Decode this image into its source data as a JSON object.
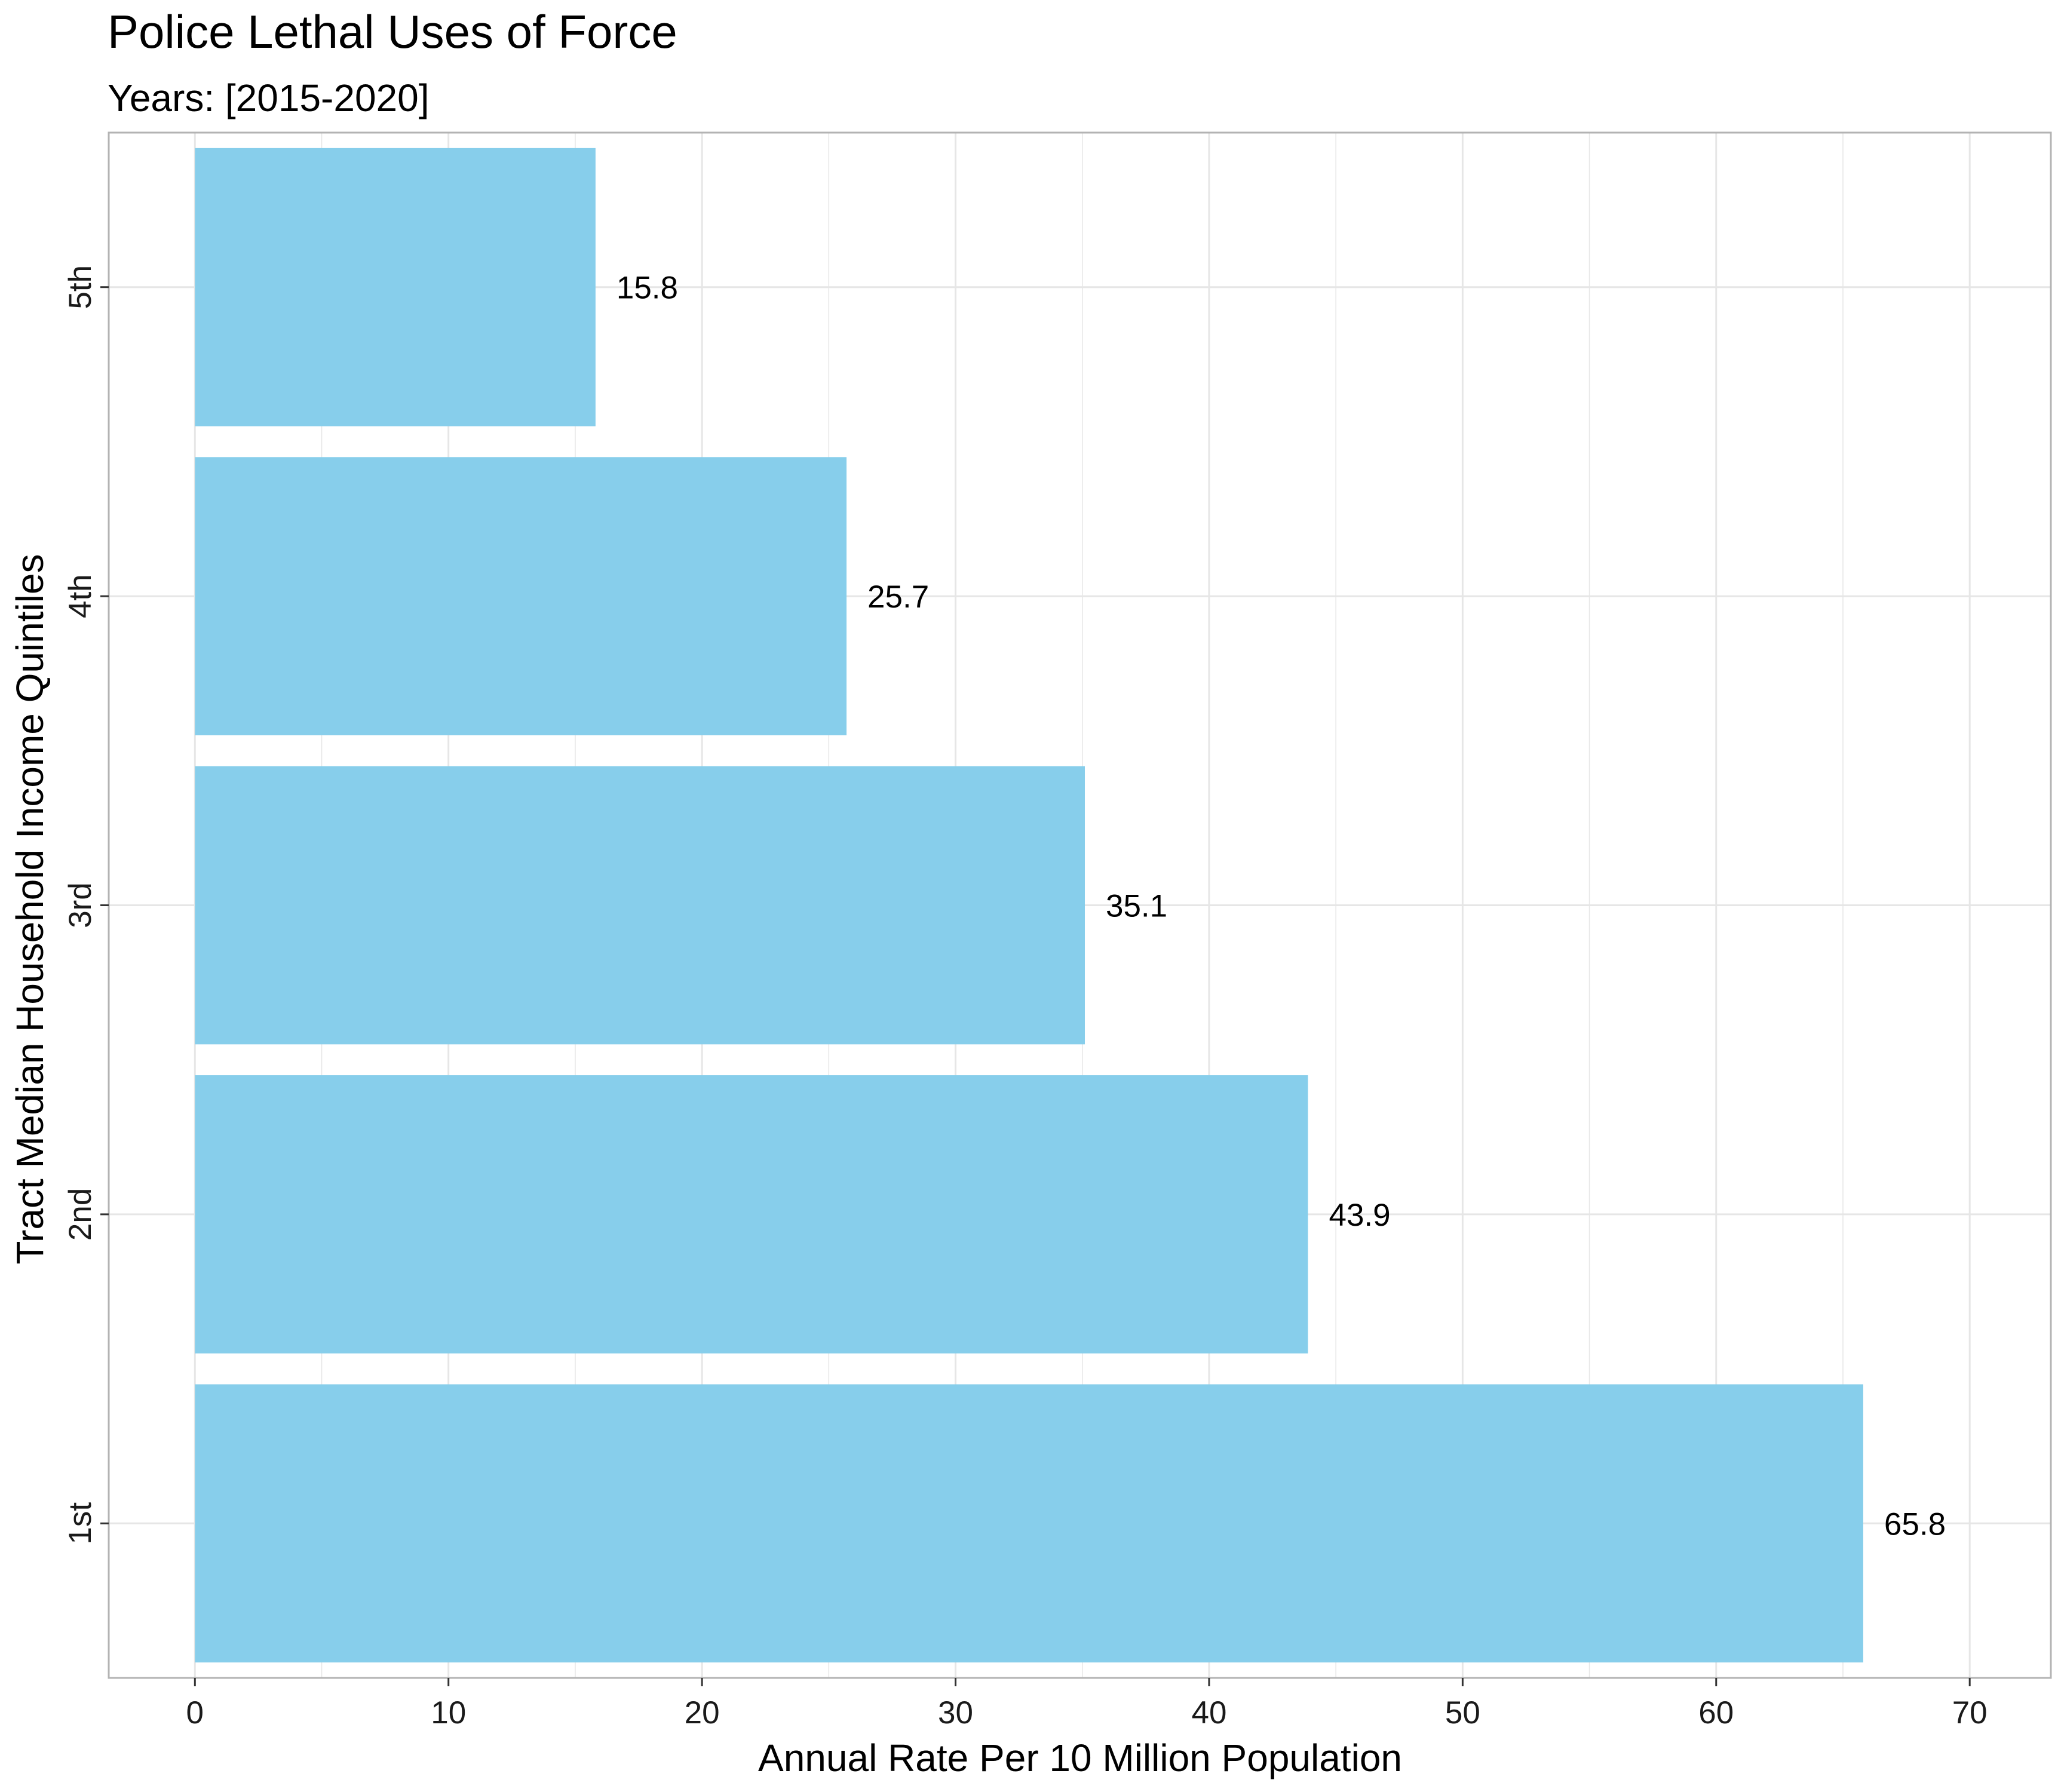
{
  "chart_data": {
    "type": "bar",
    "orientation": "horizontal",
    "title": "Police Lethal Uses of Force",
    "subtitle": "Years: [2015-2020]",
    "xlabel": "Annual Rate Per 10 Million Population",
    "ylabel": "Tract Median Household Income Quintiles",
    "categories": [
      "1st",
      "2nd",
      "3rd",
      "4th",
      "5th"
    ],
    "values": [
      65.8,
      43.9,
      35.1,
      25.7,
      15.8
    ],
    "data_labels": [
      "65.8",
      "43.9",
      "35.1",
      "25.7",
      "15.8"
    ],
    "xlim": [
      -3.4,
      73.2
    ],
    "xticks": [
      0,
      10,
      20,
      30,
      40,
      50,
      60,
      70
    ],
    "xtick_labels": [
      "0",
      "10",
      "20",
      "30",
      "40",
      "50",
      "60",
      "70"
    ],
    "grid": true,
    "legend": "none",
    "bar_color": "#87CEEB",
    "grid_color": "#e6e6e6",
    "panel_border_color": "#b3b3b3"
  }
}
